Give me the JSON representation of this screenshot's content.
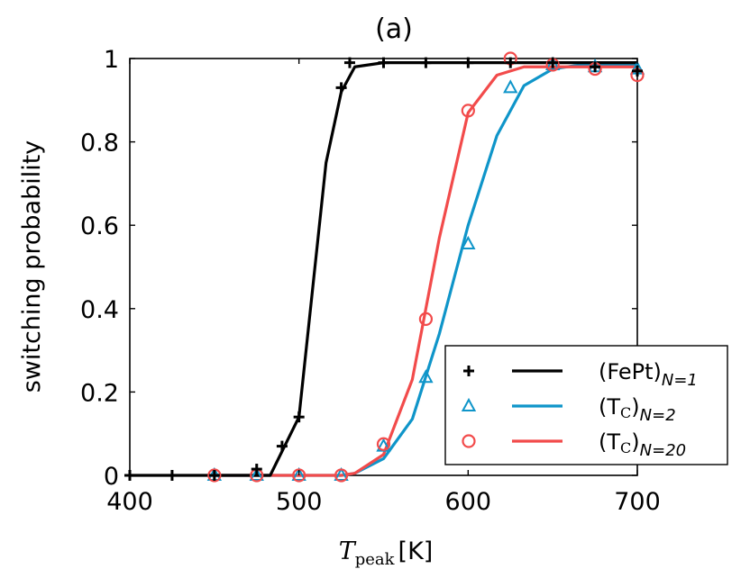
{
  "chart_data": {
    "type": "line",
    "title": "(a)",
    "xlabel": {
      "main": "T",
      "sub": "peak",
      "unit": "[K]"
    },
    "ylabel": "switching probability",
    "xlim": [
      400,
      700
    ],
    "ylim": [
      0,
      1
    ],
    "xticks": [
      400,
      500,
      600,
      700
    ],
    "yticks": [
      0,
      0.2,
      0.4,
      0.6,
      0.8,
      1
    ],
    "ytick_labels": [
      "0",
      "0.2",
      "0.4",
      "0.6",
      "0.8",
      "1"
    ],
    "grid": false,
    "legend_position": "bottom-right",
    "series": [
      {
        "key": "fept",
        "legend_main": "(FePt)",
        "legend_sub": "N=1",
        "color": "#000000",
        "marker": "plus",
        "points": {
          "x": [
            400,
            425,
            450,
            475,
            490,
            500,
            525,
            530,
            550,
            575,
            600,
            625,
            650,
            675,
            700
          ],
          "y": [
            0,
            0,
            0,
            0.015,
            0.07,
            0.14,
            0.93,
            0.99,
            0.99,
            0.99,
            0.99,
            0.99,
            0.99,
            0.98,
            0.97
          ]
        },
        "line": {
          "x": [
            400,
            483,
            500,
            516,
            525,
            533,
            550,
            600,
            650,
            700
          ],
          "y": [
            0,
            0,
            0.14,
            0.75,
            0.92,
            0.98,
            0.99,
            0.99,
            0.99,
            0.99
          ]
        }
      },
      {
        "key": "tc2",
        "legend_main": "(T",
        "legend_sub": "N=2",
        "color": "#0f95c9",
        "marker": "triangle",
        "points": {
          "x": [
            450,
            475,
            500,
            525,
            550,
            575,
            600,
            625,
            650,
            675,
            700
          ],
          "y": [
            0,
            0,
            0,
            0,
            0.07,
            0.235,
            0.555,
            0.93,
            0.985,
            0.98,
            0.975
          ]
        },
        "line": {
          "x": [
            450,
            525,
            533,
            550,
            567,
            583,
            600,
            617,
            633,
            650,
            667,
            700
          ],
          "y": [
            0,
            0,
            0.005,
            0.04,
            0.135,
            0.34,
            0.6,
            0.815,
            0.935,
            0.975,
            0.985,
            0.985
          ]
        }
      },
      {
        "key": "tc20",
        "legend_main": "(T",
        "legend_sub": "N=20",
        "color": "#f24b4b",
        "marker": "circle",
        "points": {
          "x": [
            450,
            475,
            500,
            525,
            550,
            575,
            600,
            625,
            650,
            675,
            700
          ],
          "y": [
            0,
            0,
            0,
            0,
            0.075,
            0.375,
            0.875,
            1.0,
            0.985,
            0.975,
            0.96
          ]
        },
        "line": {
          "x": [
            450,
            525,
            533,
            550,
            567,
            583,
            600,
            617,
            633,
            650,
            700
          ],
          "y": [
            0,
            0,
            0.005,
            0.05,
            0.23,
            0.57,
            0.87,
            0.96,
            0.98,
            0.98,
            0.98
          ]
        }
      }
    ]
  }
}
